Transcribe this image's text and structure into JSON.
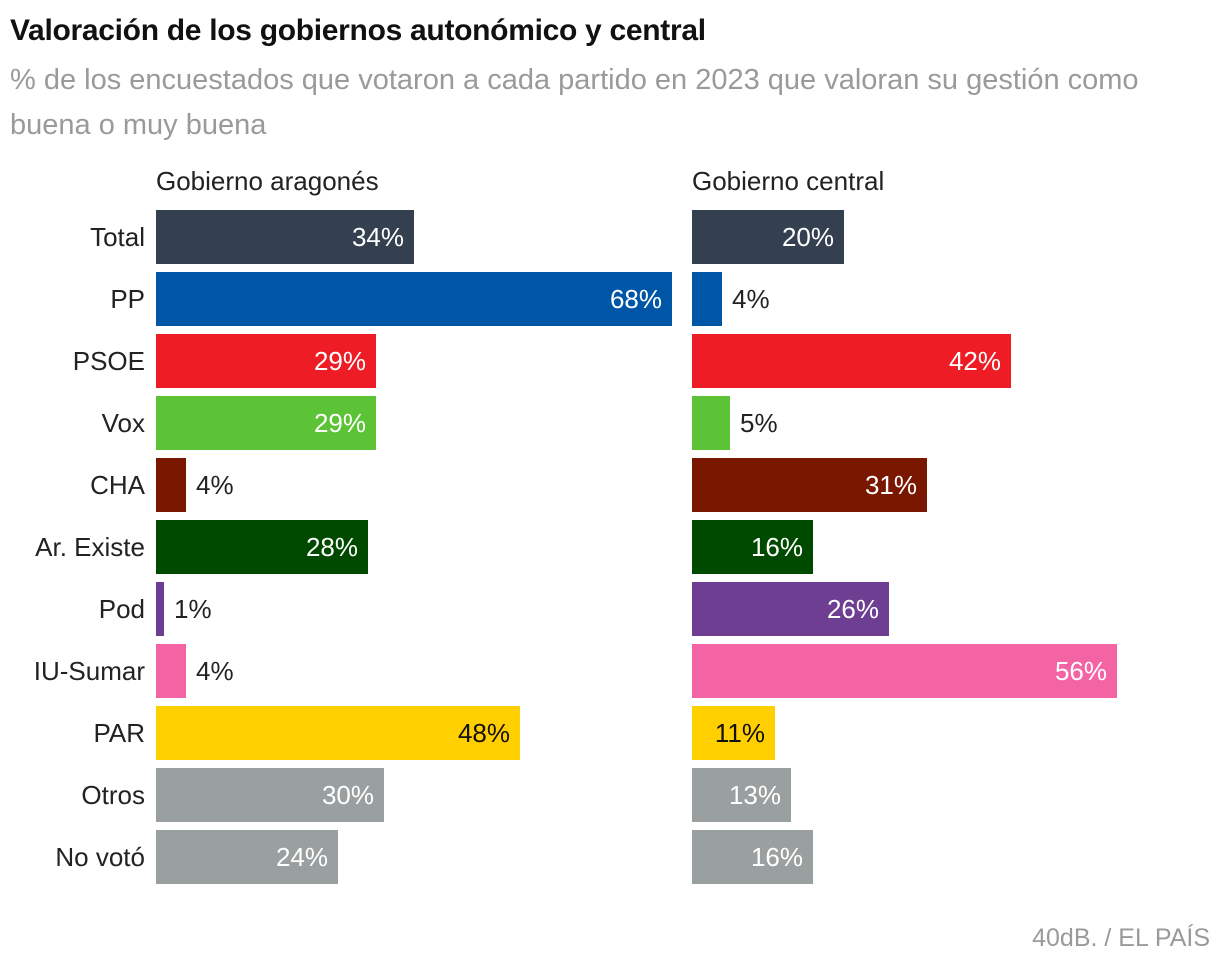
{
  "header": {
    "title": "Valoración de los gobiernos autonómico y central",
    "subtitle": "% de los encuestados que votaron a cada partido en 2023 que valoran su gestión como buena o muy buena"
  },
  "source": "40dB. / EL PAÍS",
  "chart_data": {
    "type": "bar",
    "orientation": "horizontal",
    "categories": [
      "Total",
      "PP",
      "PSOE",
      "Vox",
      "CHA",
      "Ar. Existe",
      "Pod",
      "IU-Sumar",
      "PAR",
      "Otros",
      "No votó"
    ],
    "colors": [
      "#343f4f",
      "#0056a6",
      "#ee1c25",
      "#5cc236",
      "#7a1700",
      "#004a00",
      "#6d3e91",
      "#f464a4",
      "#ffcf00",
      "#9aa0a0",
      "#9aa0a0"
    ],
    "series": [
      {
        "name": "Gobierno aragonés",
        "values": [
          34,
          68,
          29,
          29,
          4,
          28,
          1,
          4,
          48,
          30,
          24
        ],
        "labels": [
          "34%",
          "68%",
          "29%",
          "29%",
          "4%",
          "28%",
          "1%",
          "4%",
          "48%",
          "30%",
          "24%"
        ]
      },
      {
        "name": "Gobierno central",
        "values": [
          20,
          4,
          42,
          5,
          31,
          16,
          26,
          56,
          11,
          13,
          16
        ],
        "labels": [
          "20%",
          "4%",
          "42%",
          "5%",
          "31%",
          "16%",
          "26%",
          "56%",
          "11%",
          "13%",
          "16%"
        ]
      }
    ],
    "xlim": [
      0,
      68
    ]
  }
}
